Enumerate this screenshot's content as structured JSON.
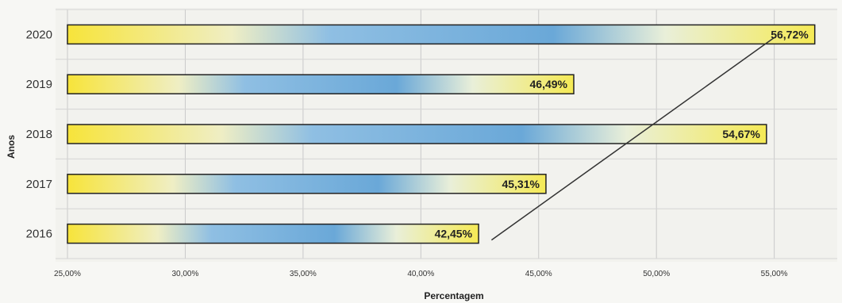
{
  "chart_data": {
    "type": "bar",
    "orientation": "horizontal",
    "categories": [
      "2020",
      "2019",
      "2018",
      "2017",
      "2016"
    ],
    "values": [
      56.72,
      46.49,
      54.67,
      45.31,
      42.45
    ],
    "data_labels": [
      "56,72%",
      "46,49%",
      "54,67%",
      "45,31%",
      "42,45%"
    ],
    "xlabel": "Percentagem",
    "ylabel": "Anos",
    "xlim": [
      25,
      57
    ],
    "x_ticks": [
      25,
      30,
      35,
      40,
      45,
      50,
      55
    ],
    "x_tick_labels": [
      "25,00%",
      "30,00%",
      "35,00%",
      "40,00%",
      "45,00%",
      "50,00%",
      "55,00%"
    ],
    "grid": true,
    "trendline": {
      "from": [
        43,
        2016
      ],
      "to": [
        55,
        2020
      ]
    },
    "colors": {
      "bar_fill": "#f5e43a",
      "bar_center": "#6aa8d8",
      "bar_border": "#222222"
    }
  }
}
